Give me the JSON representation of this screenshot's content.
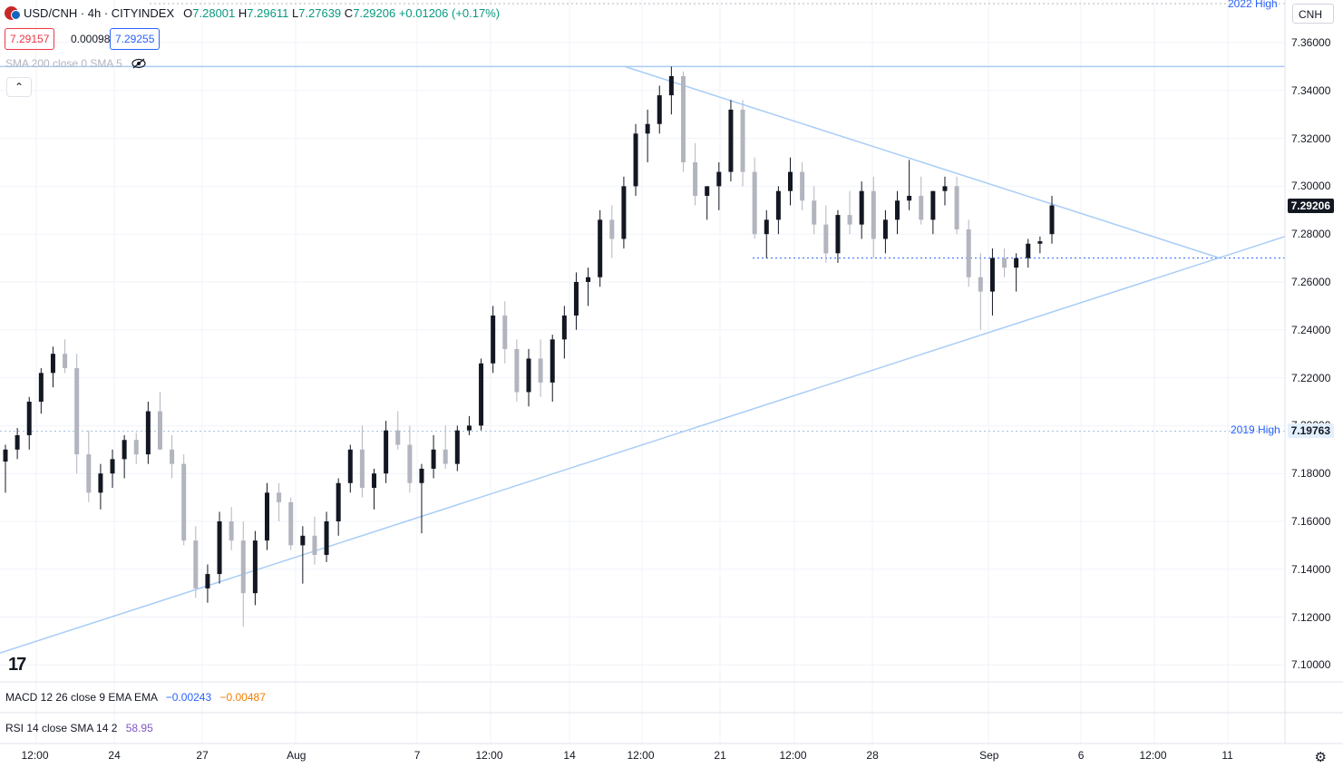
{
  "header": {
    "symbol": "USD/CNH · 4h · CITYINDEX",
    "open_key": "O",
    "open": "7.28001",
    "high_key": "H",
    "high": "7.29611",
    "low_key": "L",
    "low": "7.27639",
    "close_key": "C",
    "close": "7.29206",
    "change": "+0.01206 (+0.17%)"
  },
  "quote": {
    "bid": "7.29157",
    "spread": "0.00098",
    "ask": "7.29255"
  },
  "indicators": {
    "sma": "SMA 200 close 0 SMA 5",
    "macd": "MACD 12 26 close 9 EMA EMA",
    "macd_v1": "−0.00243",
    "macd_v2": "−0.00487",
    "rsi": "RSI 14 close SMA 14 2",
    "rsi_value": "58.95"
  },
  "currency_button": "CNH",
  "price_axis": [
    "7.36000",
    "7.34000",
    "7.32000",
    "7.30000",
    "7.28000",
    "7.26000",
    "7.24000",
    "7.22000",
    "7.20000",
    "7.18000",
    "7.16000",
    "7.14000",
    "7.12000",
    "7.10000"
  ],
  "current_price": "7.29206",
  "levels": {
    "high_2022_label": "2022 High",
    "high_2019_label": "2019 High",
    "high_2019_value": "7.19763"
  },
  "time_axis": [
    "12:00",
    "24",
    "27",
    "Aug",
    "7",
    "12:00",
    "14",
    "12:00",
    "21",
    "12:00",
    "28",
    "Sep",
    "6",
    "12:00",
    "11"
  ],
  "logo": "17",
  "colors": {
    "up": "#131722",
    "down": "#b2b5be",
    "trend": "#a9cdf5",
    "accent": "#2962ff",
    "green": "#089981",
    "orange": "#f57c00",
    "purple": "#7e57c2"
  },
  "chart_data": {
    "type": "candlestick",
    "title": "USD/CNH · 4h · CITYINDEX",
    "ylim": [
      7.095,
      7.368
    ],
    "candles": [
      [
        7.185,
        7.192,
        7.172,
        7.19
      ],
      [
        7.19,
        7.199,
        7.186,
        7.196
      ],
      [
        7.196,
        7.212,
        7.19,
        7.21
      ],
      [
        7.21,
        7.224,
        7.205,
        7.222
      ],
      [
        7.222,
        7.233,
        7.216,
        7.23
      ],
      [
        7.23,
        7.236,
        7.222,
        7.224
      ],
      [
        7.224,
        7.23,
        7.18,
        7.188
      ],
      [
        7.188,
        7.198,
        7.168,
        7.172
      ],
      [
        7.172,
        7.184,
        7.165,
        7.18
      ],
      [
        7.18,
        7.19,
        7.174,
        7.186
      ],
      [
        7.186,
        7.196,
        7.178,
        7.194
      ],
      [
        7.194,
        7.197,
        7.184,
        7.188
      ],
      [
        7.188,
        7.21,
        7.184,
        7.206
      ],
      [
        7.206,
        7.214,
        7.19,
        7.19
      ],
      [
        7.19,
        7.196,
        7.178,
        7.184
      ],
      [
        7.184,
        7.188,
        7.15,
        7.152
      ],
      [
        7.152,
        7.158,
        7.128,
        7.132
      ],
      [
        7.132,
        7.142,
        7.126,
        7.138
      ],
      [
        7.138,
        7.164,
        7.134,
        7.16
      ],
      [
        7.16,
        7.166,
        7.148,
        7.152
      ],
      [
        7.152,
        7.16,
        7.116,
        7.13
      ],
      [
        7.13,
        7.156,
        7.125,
        7.152
      ],
      [
        7.152,
        7.176,
        7.148,
        7.172
      ],
      [
        7.172,
        7.176,
        7.16,
        7.168
      ],
      [
        7.168,
        7.17,
        7.148,
        7.15
      ],
      [
        7.15,
        7.158,
        7.134,
        7.154
      ],
      [
        7.154,
        7.162,
        7.142,
        7.146
      ],
      [
        7.146,
        7.164,
        7.143,
        7.16
      ],
      [
        7.16,
        7.178,
        7.154,
        7.176
      ],
      [
        7.176,
        7.192,
        7.172,
        7.19
      ],
      [
        7.19,
        7.2,
        7.17,
        7.174
      ],
      [
        7.174,
        7.182,
        7.165,
        7.18
      ],
      [
        7.18,
        7.202,
        7.176,
        7.198
      ],
      [
        7.198,
        7.206,
        7.19,
        7.192
      ],
      [
        7.192,
        7.2,
        7.172,
        7.176
      ],
      [
        7.176,
        7.184,
        7.155,
        7.182
      ],
      [
        7.182,
        7.196,
        7.178,
        7.19
      ],
      [
        7.19,
        7.2,
        7.182,
        7.184
      ],
      [
        7.184,
        7.2,
        7.181,
        7.198
      ],
      [
        7.198,
        7.204,
        7.196,
        7.2
      ],
      [
        7.2,
        7.228,
        7.198,
        7.226
      ],
      [
        7.226,
        7.25,
        7.222,
        7.246
      ],
      [
        7.246,
        7.252,
        7.226,
        7.232
      ],
      [
        7.232,
        7.236,
        7.21,
        7.214
      ],
      [
        7.214,
        7.232,
        7.208,
        7.228
      ],
      [
        7.228,
        7.236,
        7.212,
        7.218
      ],
      [
        7.218,
        7.238,
        7.21,
        7.236
      ],
      [
        7.236,
        7.25,
        7.228,
        7.246
      ],
      [
        7.246,
        7.264,
        7.24,
        7.26
      ],
      [
        7.26,
        7.266,
        7.25,
        7.262
      ],
      [
        7.262,
        7.29,
        7.258,
        7.286
      ],
      [
        7.286,
        7.292,
        7.27,
        7.278
      ],
      [
        7.278,
        7.304,
        7.274,
        7.3
      ],
      [
        7.3,
        7.326,
        7.296,
        7.322
      ],
      [
        7.322,
        7.332,
        7.31,
        7.326
      ],
      [
        7.326,
        7.342,
        7.322,
        7.338
      ],
      [
        7.338,
        7.35,
        7.33,
        7.346
      ],
      [
        7.346,
        7.348,
        7.306,
        7.31
      ],
      [
        7.31,
        7.318,
        7.292,
        7.296
      ],
      [
        7.296,
        7.3,
        7.286,
        7.3
      ],
      [
        7.3,
        7.31,
        7.29,
        7.306
      ],
      [
        7.306,
        7.336,
        7.302,
        7.332
      ],
      [
        7.332,
        7.336,
        7.3,
        7.306
      ],
      [
        7.306,
        7.312,
        7.278,
        7.28
      ],
      [
        7.28,
        7.29,
        7.27,
        7.286
      ],
      [
        7.286,
        7.3,
        7.28,
        7.298
      ],
      [
        7.298,
        7.312,
        7.292,
        7.306
      ],
      [
        7.306,
        7.31,
        7.29,
        7.294
      ],
      [
        7.294,
        7.3,
        7.28,
        7.284
      ],
      [
        7.284,
        7.292,
        7.268,
        7.272
      ],
      [
        7.272,
        7.29,
        7.268,
        7.288
      ],
      [
        7.288,
        7.298,
        7.28,
        7.284
      ],
      [
        7.284,
        7.302,
        7.278,
        7.298
      ],
      [
        7.298,
        7.304,
        7.27,
        7.278
      ],
      [
        7.278,
        7.29,
        7.272,
        7.286
      ],
      [
        7.286,
        7.298,
        7.28,
        7.294
      ],
      [
        7.294,
        7.311,
        7.29,
        7.296
      ],
      [
        7.296,
        7.304,
        7.284,
        7.286
      ],
      [
        7.286,
        7.298,
        7.28,
        7.298
      ],
      [
        7.298,
        7.304,
        7.292,
        7.3
      ],
      [
        7.3,
        7.304,
        7.28,
        7.282
      ],
      [
        7.282,
        7.286,
        7.258,
        7.262
      ],
      [
        7.262,
        7.272,
        7.24,
        7.256
      ],
      [
        7.256,
        7.274,
        7.246,
        7.27
      ],
      [
        7.27,
        7.274,
        7.262,
        7.266
      ],
      [
        7.266,
        7.272,
        7.256,
        7.27
      ],
      [
        7.27,
        7.278,
        7.266,
        7.276
      ],
      [
        7.276,
        7.279,
        7.272,
        7.277
      ],
      [
        7.28,
        7.296,
        7.276,
        7.292
      ]
    ],
    "trendlines": [
      "descending resistance from 7.350",
      "ascending support from 7.105"
    ],
    "horizontal_levels": [
      7.35,
      7.19763,
      7.27
    ]
  }
}
